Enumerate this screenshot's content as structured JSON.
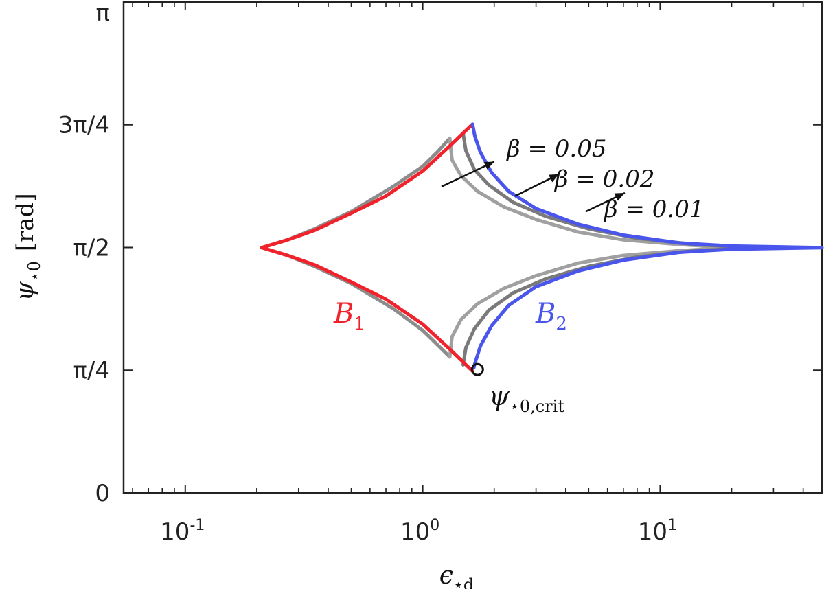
{
  "chart_data": {
    "type": "line",
    "title": "",
    "xlabel": {
      "base": "ϵ",
      "sub": "⋆d"
    },
    "ylabel": {
      "base": "ψ",
      "sub": "⋆0",
      "unit": "[rad]"
    },
    "xscale": "log",
    "xlim": [
      0.055,
      48
    ],
    "ylim": [
      0,
      3.14159
    ],
    "xticks": [
      {
        "value": 0.1,
        "base": "10",
        "exp": "-1"
      },
      {
        "value": 1,
        "base": "10",
        "exp": "0"
      },
      {
        "value": 10,
        "base": "10",
        "exp": "1"
      }
    ],
    "yticks": [
      {
        "value": 0,
        "label": "0"
      },
      {
        "value": 0.7854,
        "label": "π/4"
      },
      {
        "value": 1.5708,
        "label": "π/2"
      },
      {
        "value": 2.3562,
        "label": "3π/4"
      },
      {
        "value": 3.14159,
        "label": "π"
      }
    ],
    "series": [
      {
        "name": "B1",
        "color": "#f0222b",
        "x": [
          1.62,
          1.3,
          1.0,
          0.7,
          0.5,
          0.35,
          0.27,
          0.21,
          0.27,
          0.35,
          0.5,
          0.7,
          1.0,
          1.3,
          1.62
        ],
        "y": [
          2.36,
          2.22,
          2.06,
          1.9,
          1.79,
          1.68,
          1.62,
          1.57,
          1.52,
          1.46,
          1.35,
          1.24,
          1.08,
          0.92,
          0.78
        ]
      },
      {
        "name": "B2",
        "color": "#4a55ec",
        "x": [
          1.62,
          1.66,
          1.75,
          1.95,
          2.3,
          3.0,
          4.5,
          7.0,
          12.0,
          20.0,
          48.0,
          20.0,
          12.0,
          7.0,
          4.5,
          3.0,
          2.3,
          1.95,
          1.75,
          1.66,
          1.64
        ],
        "y": [
          2.36,
          2.28,
          2.18,
          2.05,
          1.93,
          1.82,
          1.72,
          1.65,
          1.6,
          1.58,
          1.57,
          1.56,
          1.54,
          1.49,
          1.42,
          1.32,
          1.2,
          1.07,
          0.94,
          0.83,
          0.8
        ]
      },
      {
        "name": "",
        "color": "#8c8c8c",
        "x": [
          1.3,
          1.15,
          1.0,
          0.75,
          0.5,
          0.35,
          0.27,
          0.21,
          0.27,
          0.35,
          0.5,
          0.75,
          1.0,
          1.15,
          1.3
        ],
        "y": [
          2.27,
          2.18,
          2.09,
          1.96,
          1.8,
          1.69,
          1.62,
          1.57,
          1.52,
          1.45,
          1.34,
          1.18,
          1.04,
          0.95,
          0.87
        ]
      },
      {
        "name": "",
        "color": "#a0a0a0",
        "x": [
          1.3,
          1.33,
          1.45,
          1.7,
          2.2,
          3.0,
          4.5,
          7.0,
          12.0,
          20.0,
          12.0,
          7.0,
          4.5,
          3.0,
          2.2,
          1.7,
          1.45,
          1.33,
          1.3
        ],
        "y": [
          2.27,
          2.13,
          2.03,
          1.93,
          1.83,
          1.75,
          1.67,
          1.62,
          1.59,
          1.57,
          1.55,
          1.52,
          1.47,
          1.39,
          1.31,
          1.21,
          1.11,
          1.0,
          0.87
        ]
      },
      {
        "name": "",
        "color": "#7a7a7a",
        "x": [
          1.48,
          1.52,
          1.65,
          1.9,
          2.4,
          3.3,
          5.0,
          8.0,
          14.0,
          25.0,
          14.0,
          8.0,
          5.0,
          3.3,
          2.4,
          1.9,
          1.65,
          1.52,
          1.48
        ],
        "y": [
          2.3,
          2.19,
          2.07,
          1.97,
          1.86,
          1.77,
          1.69,
          1.63,
          1.59,
          1.57,
          1.55,
          1.51,
          1.45,
          1.37,
          1.28,
          1.17,
          1.05,
          0.93,
          0.82
        ]
      }
    ],
    "annotations": [
      {
        "id": "b1",
        "base": "B",
        "sub": "1",
        "color": "#f0222b"
      },
      {
        "id": "b2",
        "base": "B",
        "sub": "2",
        "color": "#4a55ec"
      },
      {
        "id": "beta05",
        "text": "β = 0.05"
      },
      {
        "id": "beta02",
        "text": "β = 0.02"
      },
      {
        "id": "beta01",
        "text": "β = 0.01"
      },
      {
        "id": "crit",
        "base": "ψ",
        "sub": "⋆0,crit"
      }
    ],
    "critical_point": {
      "x": 1.7,
      "y": 0.79
    },
    "arrows": [
      {
        "from": [
          1.2,
          1.96
        ],
        "to": [
          2.0,
          2.12
        ]
      },
      {
        "from": [
          2.45,
          1.9
        ],
        "to": [
          3.75,
          2.04
        ]
      },
      {
        "from": [
          4.85,
          1.8
        ],
        "to": [
          7.1,
          1.92
        ]
      }
    ],
    "grid": false,
    "legend": "none"
  }
}
